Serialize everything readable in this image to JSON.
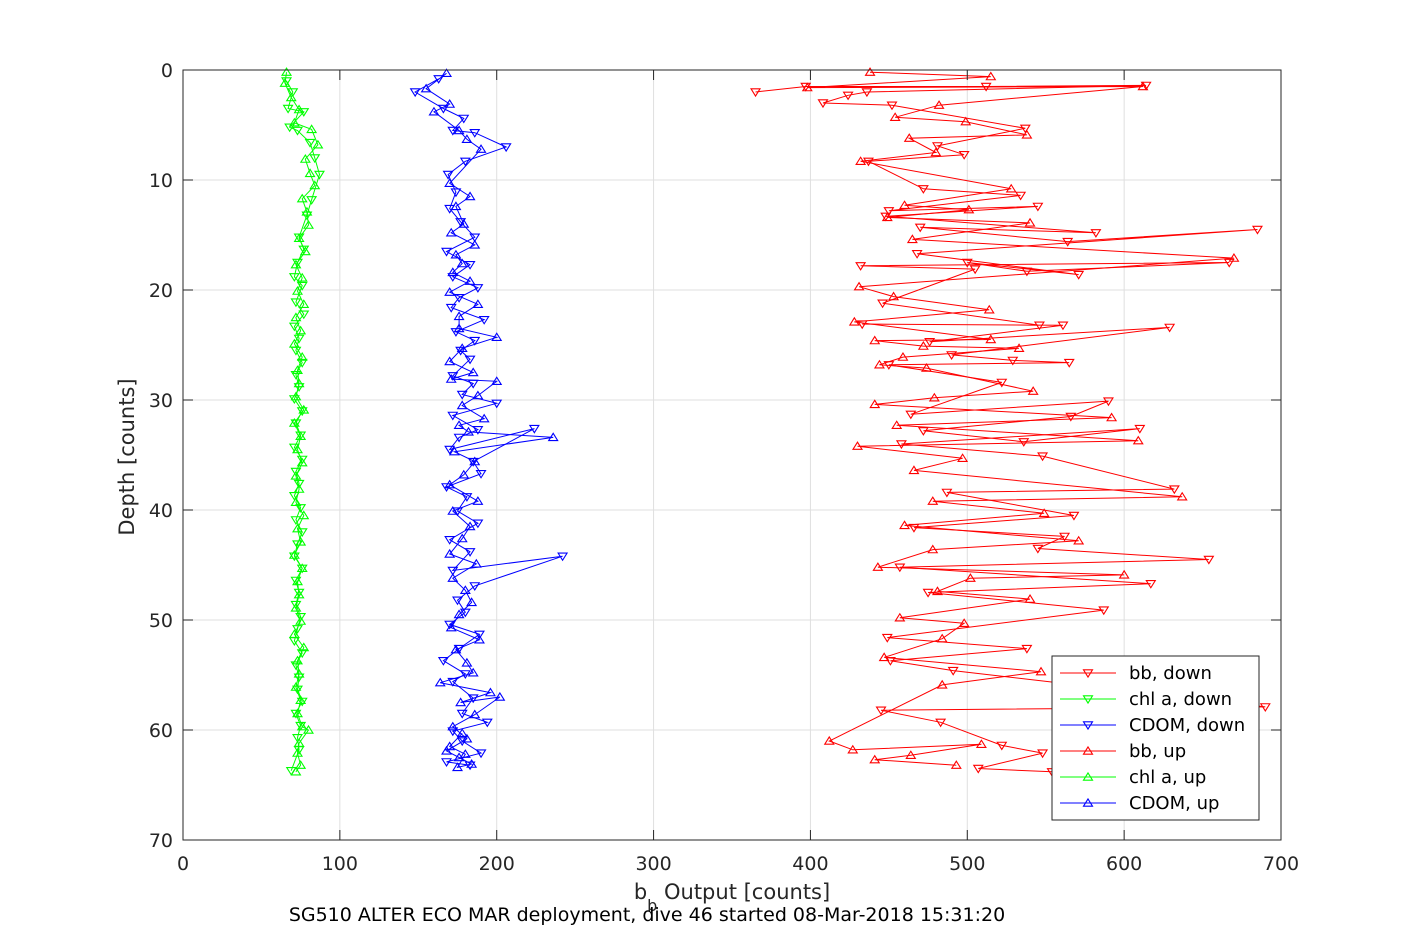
{
  "chart_data": {
    "type": "line",
    "xlabel": "b_b Output [counts]",
    "xlabel_main": "b",
    "xlabel_sub": "b",
    "xlabel_rest": " Output [counts]",
    "ylabel": "Depth [counts]",
    "xlim": [
      0,
      700
    ],
    "ylim": [
      0,
      70
    ],
    "y_reversed": true,
    "grid": true,
    "legend_position": "bottom-right",
    "x_ticks": [
      "0",
      "100",
      "200",
      "300",
      "400",
      "500",
      "600",
      "700"
    ],
    "y_ticks": [
      "0",
      "10",
      "20",
      "30",
      "40",
      "50",
      "60",
      "70"
    ],
    "series": [
      {
        "name": "bb, down",
        "color": "#ff0000",
        "marker": "triangle-down",
        "x": [
          365,
          397,
          512,
          614,
          436,
          424,
          408,
          452,
          537,
          481,
          498,
          437,
          472,
          534,
          450,
          545,
          448,
          582,
          470,
          564,
          685,
          468,
          571,
          500,
          538,
          667,
          432,
          505,
          446,
          546,
          433,
          561,
          476,
          629,
          490,
          529,
          565,
          450,
          522,
          464,
          590,
          566,
          472,
          536,
          610,
          458,
          548,
          632,
          487,
          568,
          466,
          562,
          545,
          654,
          457,
          617,
          475,
          587,
          449,
          538,
          451,
          491,
          690,
          445,
          483,
          522,
          548,
          507,
          554
        ],
        "y": [
          2,
          1.5,
          1.5,
          1.4,
          2,
          2.3,
          3,
          3.2,
          5.3,
          6.9,
          7.7,
          8.3,
          10.8,
          11.4,
          12.8,
          12.4,
          13.3,
          14.8,
          14.3,
          15.6,
          14.5,
          16.7,
          18.6,
          17.5,
          18.3,
          17.5,
          17.8,
          18.1,
          21.2,
          23.2,
          23.1,
          23.2,
          24.7,
          23.4,
          25.9,
          26.4,
          26.6,
          26.8,
          28.4,
          31.3,
          30.1,
          31.5,
          32.8,
          33.8,
          32.6,
          34,
          35.1,
          38.1,
          38.4,
          40.5,
          41.6,
          42.4,
          43.5,
          44.5,
          45.2,
          46.7,
          47.5,
          49.1,
          51.6,
          52.6,
          53.7,
          54.6,
          57.9,
          58.2,
          59.3,
          61.4,
          62.1,
          63.5,
          63.8
        ]
      },
      {
        "name": "chl a, down",
        "color": "#00ff00",
        "marker": "triangle-down",
        "x": [
          66,
          70,
          67,
          77,
          68,
          73,
          81,
          84,
          87,
          82,
          79,
          74,
          77,
          73,
          71,
          76,
          72,
          77,
          71,
          74,
          72,
          76,
          72,
          74,
          71,
          76,
          72,
          75,
          71,
          76,
          72,
          74,
          71,
          75,
          72,
          76,
          73,
          71,
          76,
          72,
          74,
          72,
          75,
          73,
          71,
          76,
          72,
          74,
          73,
          76,
          72,
          75,
          73,
          74,
          69
        ],
        "y": [
          1,
          2,
          3.5,
          3.8,
          5.2,
          5.5,
          6.6,
          8,
          9.5,
          11.8,
          13.2,
          15.2,
          16.3,
          17.5,
          18.8,
          19.6,
          21.1,
          22.2,
          23.3,
          24.4,
          25.5,
          26.6,
          27.7,
          28.8,
          29.9,
          31,
          32.1,
          33.2,
          34.3,
          35.4,
          36.5,
          37.6,
          38.7,
          39.8,
          40.9,
          42,
          43.1,
          44.2,
          45.3,
          46.4,
          47.5,
          48.6,
          49.7,
          50.8,
          51.9,
          53,
          54.1,
          55.2,
          56.3,
          57.4,
          58.5,
          59.6,
          60.7,
          61.8,
          63.7
        ]
      },
      {
        "name": "CDOM, down",
        "color": "#0000ff",
        "marker": "triangle-down",
        "x": [
          163,
          148,
          166,
          179,
          172,
          186,
          206,
          180,
          169,
          174,
          170,
          177,
          186,
          168,
          183,
          172,
          188,
          176,
          171,
          192,
          174,
          186,
          177,
          183,
          172,
          185,
          178,
          200,
          172,
          188,
          176,
          170,
          224,
          185,
          190,
          168,
          181,
          175,
          188,
          170,
          183,
          172,
          242,
          186,
          175,
          180,
          170,
          189,
          176,
          166,
          180,
          172,
          185,
          178,
          194,
          172,
          178,
          190,
          168,
          183
        ],
        "y": [
          0.8,
          2,
          3.5,
          4.4,
          5.5,
          5.7,
          7,
          8.3,
          9.5,
          11.1,
          12.6,
          13.8,
          15.2,
          16.5,
          17.7,
          18.8,
          19.8,
          20.7,
          21.6,
          22.7,
          23.8,
          24.6,
          25.5,
          26.3,
          27.8,
          28.5,
          29.5,
          30.3,
          31.4,
          32.7,
          33.4,
          34.5,
          32.6,
          35.6,
          36.7,
          37.9,
          38.8,
          40.1,
          41.2,
          42.7,
          43.8,
          45.5,
          44.2,
          46.9,
          48.2,
          49.3,
          50.4,
          51.3,
          52.6,
          53.7,
          54.9,
          55.6,
          57.1,
          58.5,
          59.3,
          60.1,
          61,
          62.1,
          62.9,
          63.2
        ]
      },
      {
        "name": "bb, up",
        "color": "#ff0000",
        "marker": "triangle-up",
        "x": [
          438,
          515,
          398,
          612,
          482,
          454,
          499,
          538,
          463,
          480,
          432,
          528,
          460,
          501,
          449,
          540,
          465,
          670,
          431,
          453,
          514,
          428,
          515,
          441,
          472,
          533,
          459,
          444,
          474,
          542,
          479,
          441,
          592,
          455,
          609,
          430,
          497,
          466,
          637,
          478,
          549,
          460,
          571,
          478,
          443,
          600,
          502,
          481,
          540,
          457,
          498,
          484,
          447,
          547,
          484,
          412,
          427,
          509,
          464,
          441,
          493
        ],
        "y": [
          0.2,
          0.6,
          1.6,
          1.5,
          3.2,
          4.3,
          4.7,
          5.9,
          6.2,
          7.5,
          8.3,
          10.8,
          12.3,
          12.7,
          13.4,
          13.9,
          15.4,
          17.1,
          19.7,
          20.6,
          21.8,
          22.9,
          24.5,
          24.6,
          25.1,
          25.3,
          26.1,
          26.8,
          27.1,
          29.2,
          29.8,
          30.4,
          31.6,
          32.3,
          33.7,
          34.2,
          35.3,
          36.4,
          38.8,
          39.2,
          40.3,
          41.4,
          42.8,
          43.6,
          45.2,
          45.9,
          46.2,
          47.4,
          48.1,
          49.8,
          50.3,
          51.7,
          53.4,
          54.7,
          55.9,
          61,
          61.8,
          61.3,
          62.3,
          62.7,
          63.2
        ]
      },
      {
        "name": "chl a, up",
        "color": "#00ff00",
        "marker": "triangle-up",
        "x": [
          66,
          65,
          69,
          74,
          71,
          82,
          86,
          78,
          81,
          84,
          76,
          79,
          80,
          74,
          78,
          72,
          76,
          73,
          77,
          72,
          75,
          71,
          76,
          73,
          74,
          72,
          77,
          71,
          75,
          73,
          76,
          72,
          74,
          72,
          77,
          73,
          75,
          71,
          76,
          73,
          74,
          72,
          75,
          71,
          77,
          73,
          74,
          72,
          75,
          73,
          76,
          80,
          74,
          73,
          75,
          72
        ],
        "y": [
          0.2,
          1.2,
          2.5,
          3.6,
          4.8,
          5.4,
          6.8,
          8.1,
          9.4,
          10.5,
          11.7,
          12.9,
          14.1,
          15.3,
          16.5,
          17.7,
          18.9,
          20.1,
          21.3,
          22.5,
          23.7,
          24.9,
          26.1,
          27.3,
          28.5,
          29.7,
          30.9,
          32.1,
          33.3,
          34.5,
          35.7,
          36.9,
          38.1,
          39.3,
          40.5,
          41.7,
          42.9,
          44.1,
          45.3,
          46.5,
          47.7,
          48.9,
          50.1,
          51.3,
          52.5,
          53.7,
          54.9,
          56.1,
          57.3,
          58.5,
          59.7,
          60,
          61.2,
          62.1,
          63.2,
          63.8
        ]
      },
      {
        "name": "CDOM, up",
        "color": "#0000ff",
        "marker": "triangle-up",
        "x": [
          168,
          155,
          170,
          160,
          176,
          181,
          190,
          170,
          183,
          174,
          179,
          171,
          186,
          174,
          178,
          172,
          183,
          170,
          188,
          176,
          176,
          200,
          178,
          170,
          185,
          171,
          200,
          188,
          178,
          192,
          176,
          182,
          236,
          173,
          186,
          179,
          170,
          188,
          172,
          183,
          178,
          170,
          187,
          172,
          180,
          184,
          176,
          171,
          189,
          174,
          181,
          185,
          164,
          196,
          177,
          202,
          186,
          172,
          181,
          168,
          176,
          184,
          175,
          180,
          170,
          178
        ],
        "y": [
          0.3,
          1.7,
          3.1,
          3.8,
          5.5,
          6.3,
          7.2,
          10.3,
          11.5,
          12.4,
          14,
          14.8,
          15.9,
          16.8,
          17.6,
          18.4,
          19.2,
          20.2,
          21.3,
          22.4,
          23.5,
          24.3,
          25.3,
          26.5,
          27.5,
          28.1,
          28.3,
          29.6,
          30.5,
          31.7,
          32.3,
          32.9,
          33.4,
          34.7,
          35.6,
          36.8,
          37.7,
          39.2,
          40.1,
          41.5,
          42.6,
          44,
          44.9,
          46.2,
          47.3,
          48.4,
          49.5,
          50.7,
          51.8,
          52.7,
          53.9,
          54.8,
          55.7,
          56.6,
          57.5,
          57,
          58.6,
          59.7,
          60.8,
          61.9,
          62.5,
          63.1,
          63.4,
          62.2,
          61.5,
          60.3
        ]
      }
    ]
  },
  "caption": "SG510 ALTER ECO MAR deployment, dive 46 started 08-Mar-2018 15:31:20"
}
